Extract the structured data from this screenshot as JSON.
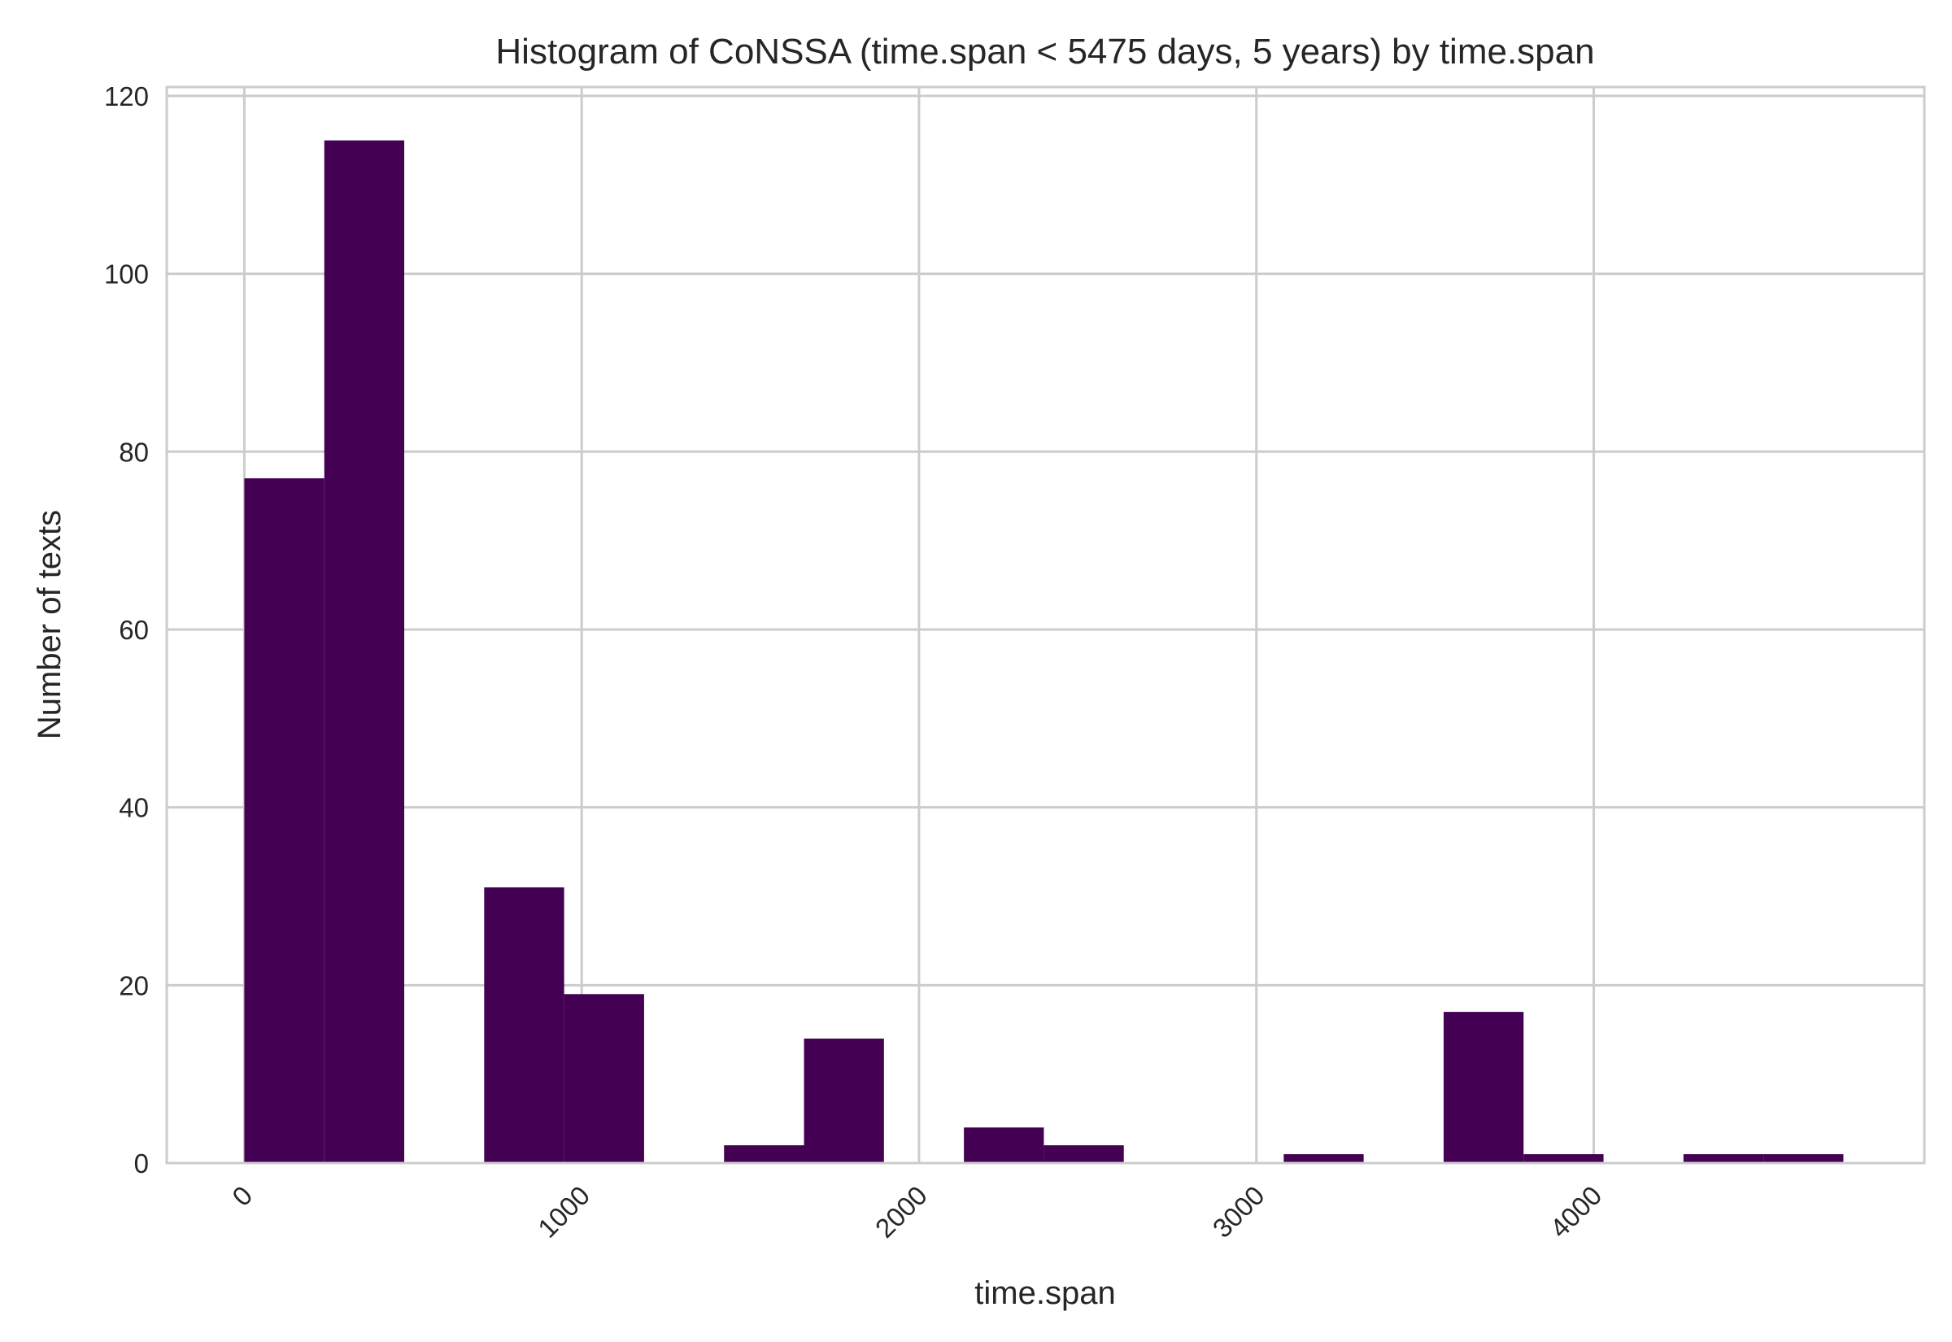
{
  "chart_data": {
    "type": "bar",
    "title": "Histogram of CoNSSA (time.span < 5475 days, 5 years) by time.span",
    "xlabel": "time.span",
    "ylabel": "Number of texts",
    "xlim": [
      -230,
      4980
    ],
    "ylim": [
      0,
      121
    ],
    "xticks": [
      0,
      1000,
      2000,
      3000,
      4000
    ],
    "yticks": [
      0,
      20,
      40,
      60,
      80,
      100,
      120
    ],
    "grid": true,
    "bar_color": "#440154",
    "bins": [
      {
        "start": 0,
        "end": 237,
        "count": 77
      },
      {
        "start": 237,
        "end": 474,
        "count": 115
      },
      {
        "start": 474,
        "end": 711,
        "count": 0
      },
      {
        "start": 711,
        "end": 948,
        "count": 31
      },
      {
        "start": 948,
        "end": 1185,
        "count": 19
      },
      {
        "start": 1185,
        "end": 1422,
        "count": 0
      },
      {
        "start": 1422,
        "end": 1659,
        "count": 2
      },
      {
        "start": 1659,
        "end": 1896,
        "count": 14
      },
      {
        "start": 1896,
        "end": 2133,
        "count": 0
      },
      {
        "start": 2133,
        "end": 2370,
        "count": 4
      },
      {
        "start": 2370,
        "end": 2607,
        "count": 2
      },
      {
        "start": 2607,
        "end": 2844,
        "count": 0
      },
      {
        "start": 2844,
        "end": 3081,
        "count": 0
      },
      {
        "start": 3081,
        "end": 3318,
        "count": 1
      },
      {
        "start": 3318,
        "end": 3555,
        "count": 0
      },
      {
        "start": 3555,
        "end": 3792,
        "count": 17
      },
      {
        "start": 3792,
        "end": 4029,
        "count": 1
      },
      {
        "start": 4029,
        "end": 4266,
        "count": 0
      },
      {
        "start": 4266,
        "end": 4503,
        "count": 1
      },
      {
        "start": 4503,
        "end": 4740,
        "count": 1
      }
    ]
  }
}
